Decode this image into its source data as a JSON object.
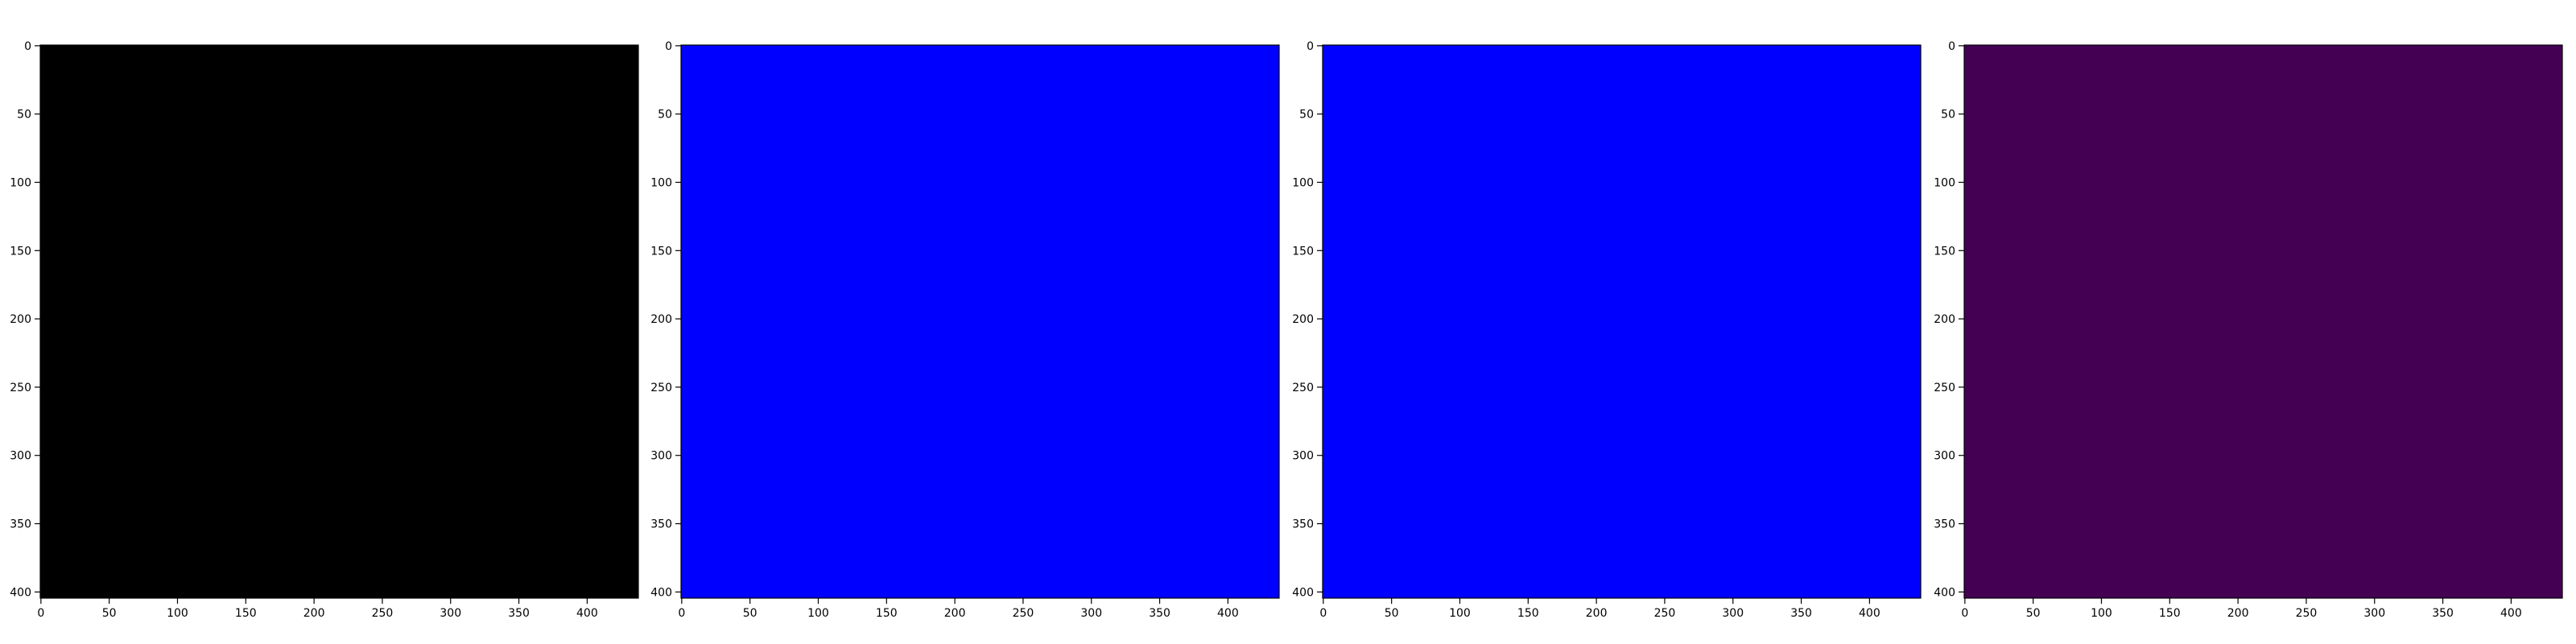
{
  "chart_data": [
    {
      "type": "heatmap",
      "fill_color": "#000000",
      "xlim": [
        -0.5,
        437.5
      ],
      "ylim": [
        404.5,
        -0.5
      ],
      "xticks": [
        0,
        50,
        100,
        150,
        200,
        250,
        300,
        350,
        400
      ],
      "yticks": [
        0,
        50,
        100,
        150,
        200,
        250,
        300,
        350,
        400
      ],
      "xtick_labels": [
        "0",
        "50",
        "100",
        "150",
        "200",
        "250",
        "300",
        "350",
        "400"
      ],
      "ytick_labels": [
        "0",
        "50",
        "100",
        "150",
        "200",
        "250",
        "300",
        "350",
        "400"
      ]
    },
    {
      "type": "heatmap",
      "fill_color": "#0000ff",
      "xlim": [
        -0.5,
        437.5
      ],
      "ylim": [
        404.5,
        -0.5
      ],
      "xticks": [
        0,
        50,
        100,
        150,
        200,
        250,
        300,
        350,
        400
      ],
      "yticks": [
        0,
        50,
        100,
        150,
        200,
        250,
        300,
        350,
        400
      ],
      "xtick_labels": [
        "0",
        "50",
        "100",
        "150",
        "200",
        "250",
        "300",
        "350",
        "400"
      ],
      "ytick_labels": [
        "0",
        "50",
        "100",
        "150",
        "200",
        "250",
        "300",
        "350",
        "400"
      ]
    },
    {
      "type": "heatmap",
      "fill_color": "#0000ff",
      "xlim": [
        -0.5,
        437.5
      ],
      "ylim": [
        404.5,
        -0.5
      ],
      "xticks": [
        0,
        50,
        100,
        150,
        200,
        250,
        300,
        350,
        400
      ],
      "yticks": [
        0,
        50,
        100,
        150,
        200,
        250,
        300,
        350,
        400
      ],
      "xtick_labels": [
        "0",
        "50",
        "100",
        "150",
        "200",
        "250",
        "300",
        "350",
        "400"
      ],
      "ytick_labels": [
        "0",
        "50",
        "100",
        "150",
        "200",
        "250",
        "300",
        "350",
        "400"
      ]
    },
    {
      "type": "heatmap",
      "fill_color": "#440154",
      "xlim": [
        -0.5,
        437.5
      ],
      "ylim": [
        404.5,
        -0.5
      ],
      "xticks": [
        0,
        50,
        100,
        150,
        200,
        250,
        300,
        350,
        400
      ],
      "yticks": [
        0,
        50,
        100,
        150,
        200,
        250,
        300,
        350,
        400
      ],
      "xtick_labels": [
        "0",
        "50",
        "100",
        "150",
        "200",
        "250",
        "300",
        "350",
        "400"
      ],
      "ytick_labels": [
        "0",
        "50",
        "100",
        "150",
        "200",
        "250",
        "300",
        "350",
        "400"
      ]
    }
  ]
}
